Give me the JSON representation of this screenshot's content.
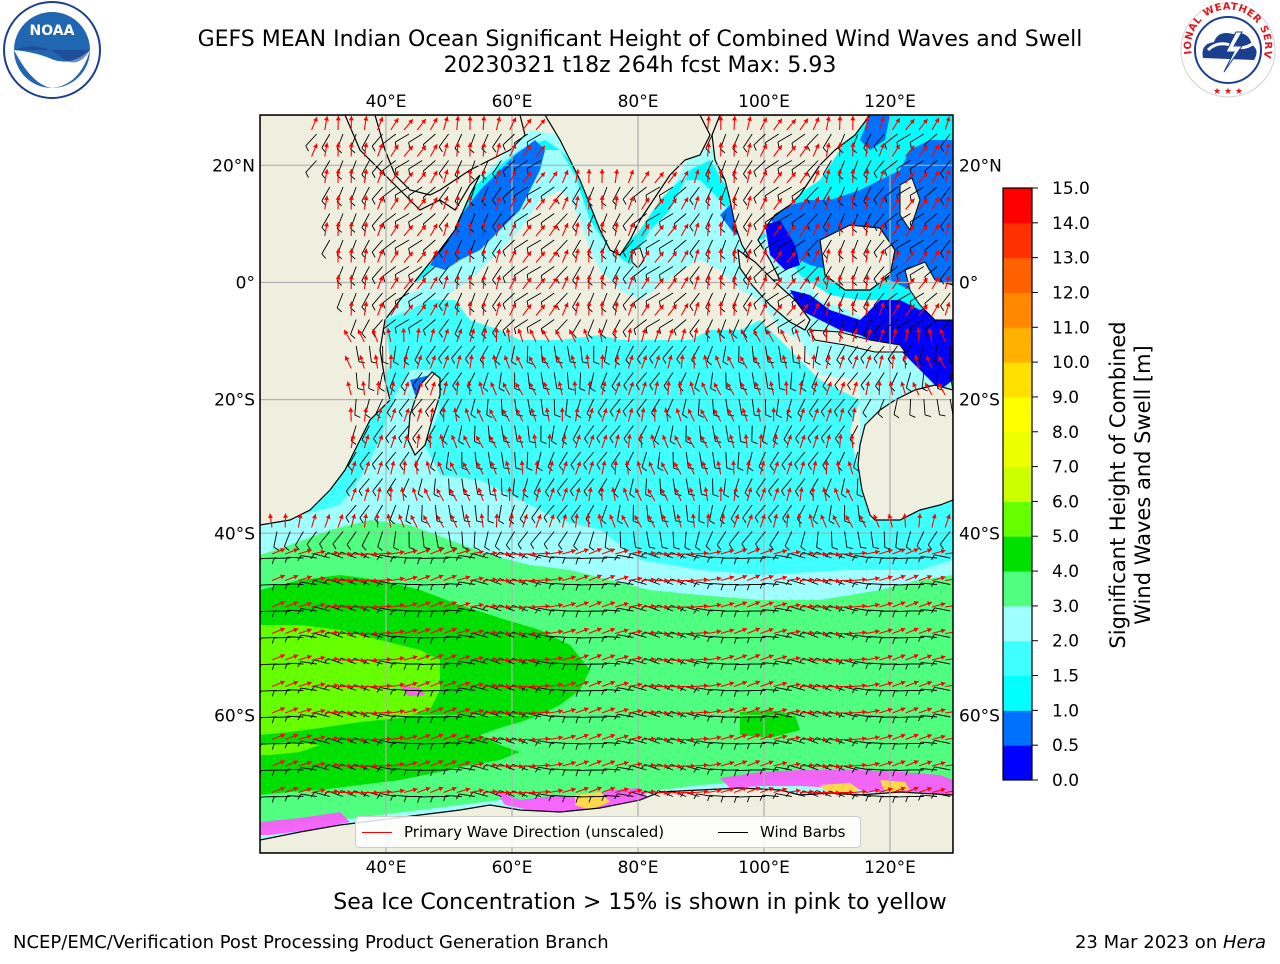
{
  "header": {
    "title_line1": "GEFS MEAN Indian Ocean Significant Height of Combined Wind Waves and Swell",
    "title_line2": "20230321 t18z 264h fcst   Max: 5.93"
  },
  "logos": {
    "left": {
      "name": "noaa-logo",
      "text": "NOAA"
    },
    "right": {
      "name": "nws-logo",
      "text": "NATIONAL WEATHER SERVICE"
    }
  },
  "map": {
    "lon_ticks": [
      "40°E",
      "60°E",
      "80°E",
      "100°E",
      "120°E"
    ],
    "lat_ticks": [
      "20°N",
      "0°",
      "20°S",
      "40°S",
      "60°S"
    ],
    "lon_values": [
      40,
      60,
      80,
      100,
      120
    ],
    "lat_values": [
      20,
      0,
      -20,
      -40,
      -60
    ],
    "extent": {
      "lon": [
        20,
        130
      ],
      "lat": [
        -70,
        28
      ]
    },
    "colors": {
      "land": "#efefe0",
      "grid": "#b0b0b0",
      "wave_arrow": "#ff0000",
      "wind_barb": "#000000"
    }
  },
  "legend": {
    "wave_label": "Primary Wave Direction (unscaled)",
    "wind_label": "Wind Barbs"
  },
  "colorbar": {
    "label_line1": "Significant Height of Combined",
    "label_line2": "Wind Waves and Swell [m]",
    "ticks": [
      "0.0",
      "0.5",
      "1.0",
      "1.5",
      "2.0",
      "3.0",
      "4.0",
      "5.0",
      "6.0",
      "7.0",
      "8.0",
      "9.0",
      "10.0",
      "11.0",
      "12.0",
      "13.0",
      "14.0",
      "15.0"
    ],
    "colors": [
      "#0000ff",
      "#0070ff",
      "#00ffff",
      "#40ffff",
      "#a0ffff",
      "#50ff80",
      "#00e000",
      "#66ff00",
      "#ccff00",
      "#eeff00",
      "#ffff00",
      "#ffe000",
      "#ffb000",
      "#ff8800",
      "#ff6000",
      "#ff3000",
      "#ff0000"
    ]
  },
  "notes": {
    "ice": "Sea Ice Concentration > 15% is shown in pink to yellow"
  },
  "footer": {
    "left": "NCEP/EMC/Verification Post Processing Product Generation Branch",
    "right_prefix": "23 Mar 2023 on ",
    "right_machine": "Hera"
  }
}
